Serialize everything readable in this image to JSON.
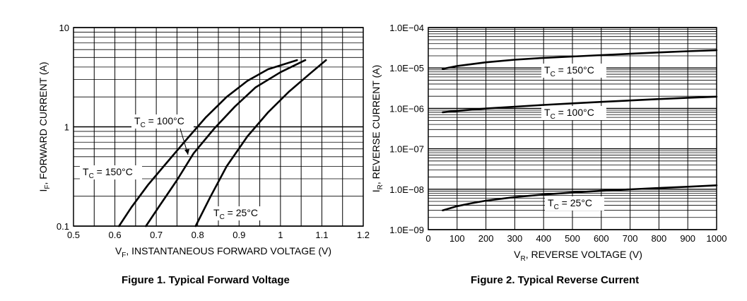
{
  "chart_data": [
    {
      "type": "line",
      "title": "Figure 1. Typical Forward Voltage",
      "xlabel_main": "V",
      "xlabel_sub": "F",
      "xlabel_rest": ", INSTANTANEOUS FORWARD VOLTAGE (V)",
      "ylabel_main": "I",
      "ylabel_sub": "F",
      "ylabel_rest": ", FORWARD CURRENT (A)",
      "xscale": "linear",
      "yscale": "log",
      "xlim": [
        0.5,
        1.2
      ],
      "ylim": [
        0.1,
        10
      ],
      "xticks": [
        0.5,
        0.6,
        0.7,
        0.8,
        0.9,
        1.0,
        1.1,
        1.2
      ],
      "xtick_labels": [
        "0.5",
        "0.6",
        "0.7",
        "0.8",
        "0.9",
        "1",
        "1.1",
        "1.2"
      ],
      "yticks": [
        0.1,
        1,
        10
      ],
      "ytick_labels": [
        "0.1",
        "1",
        "10"
      ],
      "series": [
        {
          "name": "TC = 150°C",
          "label_main": "T",
          "label_sub": "C",
          "label_rest": " = 150°C",
          "x": [
            0.61,
            0.64,
            0.68,
            0.72,
            0.77,
            0.82,
            0.87,
            0.92,
            0.97,
            1.04
          ],
          "y": [
            0.1,
            0.155,
            0.26,
            0.41,
            0.72,
            1.25,
            2.0,
            2.9,
            3.8,
            4.7
          ]
        },
        {
          "name": "TC = 100°C",
          "label_main": "T",
          "label_sub": "C",
          "label_rest": " = 100°C",
          "x": [
            0.675,
            0.71,
            0.75,
            0.79,
            0.84,
            0.89,
            0.94,
            1.0,
            1.06
          ],
          "y": [
            0.1,
            0.165,
            0.29,
            0.54,
            0.96,
            1.6,
            2.5,
            3.55,
            4.7
          ]
        },
        {
          "name": "TC = 25°C",
          "label_main": "T",
          "label_sub": "C",
          "label_rest": " = 25°C",
          "x": [
            0.795,
            0.83,
            0.87,
            0.92,
            0.97,
            1.02,
            1.07,
            1.11
          ],
          "y": [
            0.1,
            0.195,
            0.4,
            0.8,
            1.4,
            2.25,
            3.4,
            4.7
          ]
        }
      ]
    },
    {
      "type": "line",
      "title": "Figure 2. Typical Reverse Current",
      "xlabel_main": "V",
      "xlabel_sub": "R",
      "xlabel_rest": ", REVERSE VOLTAGE (V)",
      "ylabel_main": "I",
      "ylabel_sub": "R",
      "ylabel_rest": ", REVERSE CURRENT (A)",
      "xscale": "linear",
      "yscale": "log",
      "xlim": [
        0,
        1000
      ],
      "ylim": [
        1e-09,
        0.0001
      ],
      "xticks": [
        0,
        100,
        200,
        300,
        400,
        500,
        600,
        700,
        800,
        900,
        1000
      ],
      "xtick_labels": [
        "0",
        "100",
        "200",
        "300",
        "400",
        "500",
        "600",
        "700",
        "800",
        "900",
        "1000"
      ],
      "yticks": [
        1e-09,
        1e-08,
        1e-07,
        1e-06,
        1e-05,
        0.0001
      ],
      "ytick_labels": [
        "1.0E−09",
        "1.0E−08",
        "1.0E−07",
        "1.0E−06",
        "1.0E−05",
        "1.0E−04"
      ],
      "series": [
        {
          "name": "TC = 150°C",
          "label_main": "T",
          "label_sub": "C",
          "label_rest": " = 150°C",
          "x": [
            50,
            100,
            200,
            300,
            400,
            500,
            600,
            700,
            800,
            900,
            1000
          ],
          "y": [
            9.5e-06,
            1.12e-05,
            1.38e-05,
            1.6e-05,
            1.78e-05,
            1.92e-05,
            2.08e-05,
            2.25e-05,
            2.42e-05,
            2.6e-05,
            2.75e-05
          ]
        },
        {
          "name": "TC = 100°C",
          "label_main": "T",
          "label_sub": "C",
          "label_rest": " = 100°C",
          "x": [
            50,
            100,
            200,
            300,
            400,
            500,
            600,
            700,
            800,
            900,
            1000
          ],
          "y": [
            8e-07,
            8.7e-07,
            9.9e-07,
            1.1e-06,
            1.22e-06,
            1.33e-06,
            1.45e-06,
            1.57e-06,
            1.7e-06,
            1.83e-06,
            1.95e-06
          ]
        },
        {
          "name": "TC = 25°C",
          "label_main": "T",
          "label_sub": "C",
          "label_rest": " = 25°C",
          "x": [
            50,
            100,
            150,
            200,
            300,
            400,
            500,
            600,
            700,
            800,
            900,
            1000
          ],
          "y": [
            3e-09,
            3.8e-09,
            4.5e-09,
            5.2e-09,
            6.4e-09,
            7.4e-09,
            8.3e-09,
            9.1e-09,
            9.9e-09,
            1.07e-08,
            1.15e-08,
            1.25e-08
          ]
        }
      ]
    }
  ]
}
